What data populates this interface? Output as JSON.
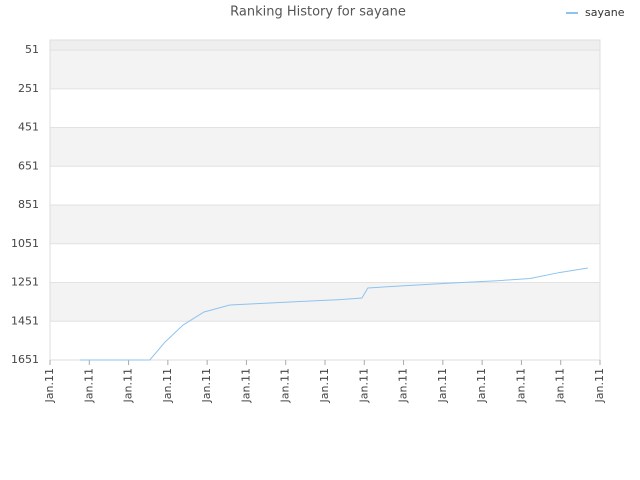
{
  "chart_data": {
    "type": "line",
    "title": "Ranking History for sayane",
    "legend": "top-right",
    "grid": true,
    "x": [
      0.76,
      2.54,
      2.93,
      3.39,
      3.92,
      4.58,
      5.35,
      6.36,
      7.38,
      7.94,
      8.09,
      8.91,
      10.18,
      11.45,
      12.22,
      12.98,
      13.69
    ],
    "series": [
      {
        "name": "sayane",
        "color": "#8ec3f0",
        "values": [
          1651,
          1651,
          1558,
          1470,
          1403,
          1367,
          1359,
          1349,
          1339,
          1331,
          1279,
          1269,
          1254,
          1241,
          1230,
          1199,
          1176
        ]
      }
    ],
    "xlim": [
      0,
      14
    ],
    "xticks": [
      {
        "value": 0,
        "label": "Jan.11"
      },
      {
        "value": 1,
        "label": "Jan.11"
      },
      {
        "value": 2,
        "label": "Jan.11"
      },
      {
        "value": 3,
        "label": "Jan.11"
      },
      {
        "value": 4,
        "label": "Jan.11"
      },
      {
        "value": 5,
        "label": "Jan.11"
      },
      {
        "value": 6,
        "label": "Jan.11"
      },
      {
        "value": 7,
        "label": "Jan.11"
      },
      {
        "value": 8,
        "label": "Jan.11"
      },
      {
        "value": 9,
        "label": "Jan.11"
      },
      {
        "value": 10,
        "label": "Jan.11"
      },
      {
        "value": 11,
        "label": "Jan.11"
      },
      {
        "value": 12,
        "label": "Jan.11"
      },
      {
        "value": 13,
        "label": "Jan.11"
      },
      {
        "value": 14,
        "label": "Jan.11"
      }
    ],
    "ylim": [
      1651,
      -1
    ],
    "yticks": [
      51,
      251,
      451,
      651,
      851,
      1051,
      1251,
      1451,
      1651
    ]
  }
}
